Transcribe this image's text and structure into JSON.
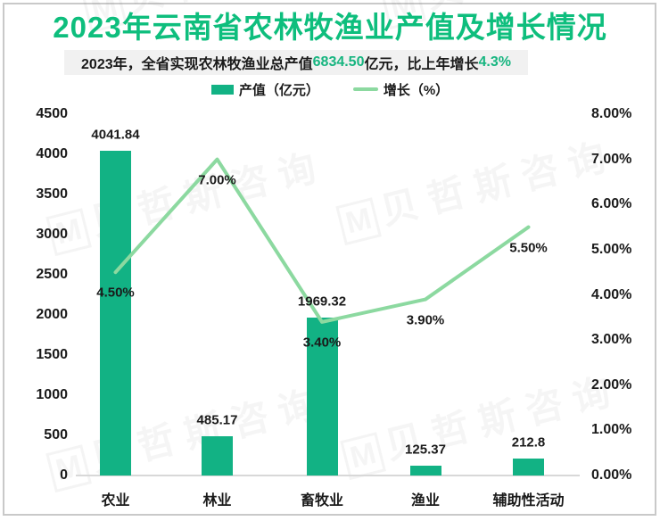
{
  "title": "2023年云南省农林牧渔业产值及增长情况",
  "subtitle": {
    "part1": "2023年，全省实现农林牧渔业总产值",
    "highlight1": "6834.50",
    "part2": "亿元，比上年增长",
    "highlight2": "4.3%"
  },
  "legend": {
    "bar_label": "产值（亿元）",
    "line_label": "增长（%）"
  },
  "watermark_text": "贝哲斯咨询",
  "icons": {
    "watermark_logo": "M"
  },
  "colors": {
    "title_green": "#0EBE7D",
    "bar_green": "#12B284",
    "line_green": "#8CD9A0",
    "highlight_green": "#17B580",
    "subtitle_bg": "#F1F1F1",
    "text_dark": "#1A1A1A",
    "axis_gray": "#D8D8D8"
  },
  "chart_data": {
    "type": "bar",
    "combo": "bar+line",
    "title": "2023年云南省农林牧渔业产值及增长情况",
    "categories": [
      "农业",
      "林业",
      "畜牧业",
      "渔业",
      "辅助性活动"
    ],
    "series": [
      {
        "name": "产值（亿元）",
        "type": "bar",
        "axis": "left",
        "values": [
          4041.84,
          485.17,
          1969.32,
          125.37,
          212.8
        ],
        "labels": [
          "4041.84",
          "485.17",
          "1969.32",
          "125.37",
          "212.8"
        ]
      },
      {
        "name": "增长（%）",
        "type": "line",
        "axis": "right",
        "values": [
          4.5,
          7.0,
          3.4,
          3.9,
          5.5
        ],
        "labels": [
          "4.50%",
          "7.00%",
          "3.40%",
          "3.90%",
          "5.50%"
        ]
      }
    ],
    "left_axis": {
      "min": 0,
      "max": 4500,
      "step": 500,
      "tick_labels": [
        "4500",
        "4000",
        "3500",
        "3000",
        "2500",
        "2000",
        "1500",
        "1000",
        "500",
        "0"
      ]
    },
    "right_axis": {
      "min": 0,
      "max": 8,
      "step": 1,
      "tick_labels": [
        "8.00%",
        "7.00%",
        "6.00%",
        "5.00%",
        "4.00%",
        "3.00%",
        "2.00%",
        "1.00%",
        "0.00%"
      ]
    },
    "grid": false,
    "legend_position": "top"
  }
}
